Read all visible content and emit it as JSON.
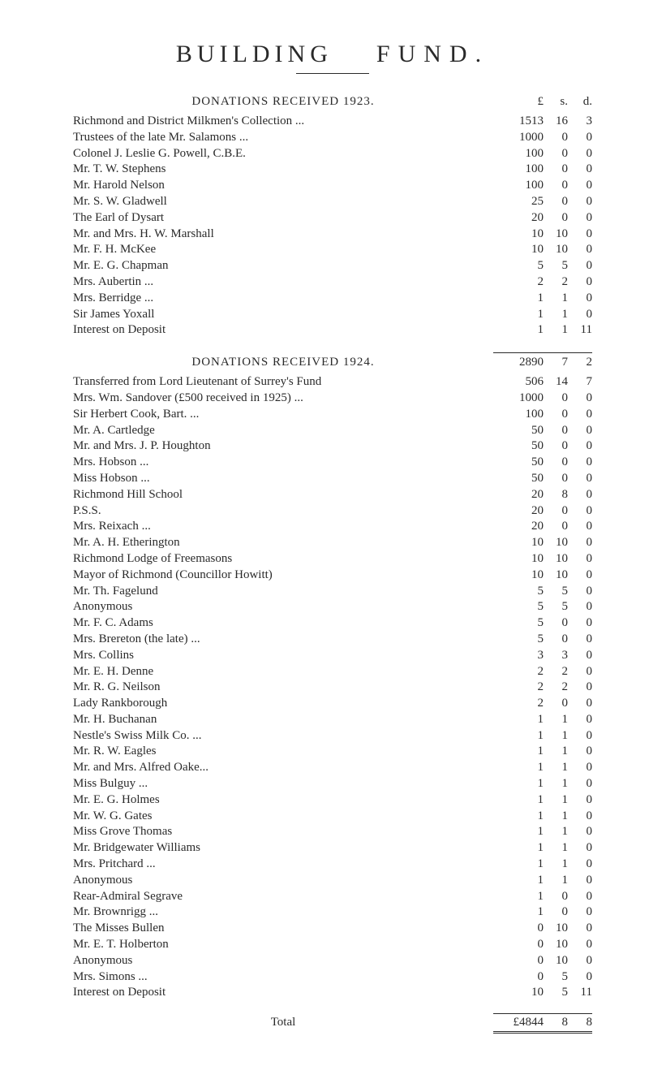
{
  "title_parts": [
    "BUILDING",
    "FUND."
  ],
  "section1": {
    "heading": "DONATIONS  RECEIVED  1923.",
    "col_heads": {
      "l": "£",
      "s": "s.",
      "d": "d."
    },
    "entries": [
      {
        "label": "Richmond and District Milkmen's Collection ...",
        "l": "1513",
        "s": "16",
        "d": "3"
      },
      {
        "label": "Trustees of the late Mr. Salamons  ...",
        "l": "1000",
        "s": "0",
        "d": "0"
      },
      {
        "label": "Colonel J. Leslie G. Powell, C.B.E.",
        "l": "100",
        "s": "0",
        "d": "0"
      },
      {
        "label": "Mr. T. W. Stephens",
        "l": "100",
        "s": "0",
        "d": "0"
      },
      {
        "label": "Mr. Harold Nelson",
        "l": "100",
        "s": "0",
        "d": "0"
      },
      {
        "label": "Mr. S. W. Gladwell",
        "l": "25",
        "s": "0",
        "d": "0"
      },
      {
        "label": "The Earl of Dysart",
        "l": "20",
        "s": "0",
        "d": "0"
      },
      {
        "label": "Mr. and Mrs. H. W. Marshall",
        "l": "10",
        "s": "10",
        "d": "0"
      },
      {
        "label": "Mr. F. H. McKee",
        "l": "10",
        "s": "10",
        "d": "0"
      },
      {
        "label": "Mr. E. G. Chapman",
        "l": "5",
        "s": "5",
        "d": "0"
      },
      {
        "label": "Mrs. Aubertin  ...",
        "l": "2",
        "s": "2",
        "d": "0"
      },
      {
        "label": "Mrs. Berridge  ...",
        "l": "1",
        "s": "1",
        "d": "0"
      },
      {
        "label": "Sir James Yoxall",
        "l": "1",
        "s": "1",
        "d": "0"
      },
      {
        "label": "Interest on Deposit",
        "l": "1",
        "s": "1",
        "d": "11"
      }
    ]
  },
  "section2": {
    "heading": "DONATIONS  RECEIVED  1924.",
    "subtotal": {
      "l": "2890",
      "s": "7",
      "d": "2"
    },
    "entries": [
      {
        "label": "Transferred from Lord Lieutenant of Surrey's Fund",
        "l": "506",
        "s": "14",
        "d": "7"
      },
      {
        "label": "Mrs. Wm. Sandover (£500 received in 1925)  ...",
        "l": "1000",
        "s": "0",
        "d": "0"
      },
      {
        "label": "Sir Herbert Cook, Bart.  ...",
        "l": "100",
        "s": "0",
        "d": "0"
      },
      {
        "label": "Mr. A. Cartledge",
        "l": "50",
        "s": "0",
        "d": "0"
      },
      {
        "label": "Mr. and Mrs. J. P. Houghton",
        "l": "50",
        "s": "0",
        "d": "0"
      },
      {
        "label": "Mrs. Hobson  ...",
        "l": "50",
        "s": "0",
        "d": "0"
      },
      {
        "label": "Miss Hobson  ...",
        "l": "50",
        "s": "0",
        "d": "0"
      },
      {
        "label": "Richmond Hill School",
        "l": "20",
        "s": "8",
        "d": "0"
      },
      {
        "label": "P.S.S.",
        "l": "20",
        "s": "0",
        "d": "0"
      },
      {
        "label": "Mrs. Reixach  ...",
        "l": "20",
        "s": "0",
        "d": "0"
      },
      {
        "label": "Mr. A. H. Etherington",
        "l": "10",
        "s": "10",
        "d": "0"
      },
      {
        "label": "Richmond Lodge of Freemasons",
        "l": "10",
        "s": "10",
        "d": "0"
      },
      {
        "label": "Mayor of Richmond (Councillor Howitt)",
        "l": "10",
        "s": "10",
        "d": "0"
      },
      {
        "label": "Mr. Th. Fagelund",
        "l": "5",
        "s": "5",
        "d": "0"
      },
      {
        "label": "Anonymous",
        "l": "5",
        "s": "5",
        "d": "0"
      },
      {
        "label": "Mr. F. C. Adams",
        "l": "5",
        "s": "0",
        "d": "0"
      },
      {
        "label": "Mrs. Brereton (the late)  ...",
        "l": "5",
        "s": "0",
        "d": "0"
      },
      {
        "label": "Mrs. Collins",
        "l": "3",
        "s": "3",
        "d": "0"
      },
      {
        "label": "Mr. E. H. Denne",
        "l": "2",
        "s": "2",
        "d": "0"
      },
      {
        "label": "Mr. R. G. Neilson",
        "l": "2",
        "s": "2",
        "d": "0"
      },
      {
        "label": "Lady Rankborough",
        "l": "2",
        "s": "0",
        "d": "0"
      },
      {
        "label": "Mr. H. Buchanan",
        "l": "1",
        "s": "1",
        "d": "0"
      },
      {
        "label": "Nestle's Swiss Milk Co.  ...",
        "l": "1",
        "s": "1",
        "d": "0"
      },
      {
        "label": "Mr. R. W. Eagles",
        "l": "1",
        "s": "1",
        "d": "0"
      },
      {
        "label": "Mr. and Mrs. Alfred Oake...",
        "l": "1",
        "s": "1",
        "d": "0"
      },
      {
        "label": "Miss Bulguy  ...",
        "l": "1",
        "s": "1",
        "d": "0"
      },
      {
        "label": "Mr. E. G. Holmes",
        "l": "1",
        "s": "1",
        "d": "0"
      },
      {
        "label": "Mr. W. G. Gates",
        "l": "1",
        "s": "1",
        "d": "0"
      },
      {
        "label": "Miss Grove Thomas",
        "l": "1",
        "s": "1",
        "d": "0"
      },
      {
        "label": "Mr. Bridgewater Williams",
        "l": "1",
        "s": "1",
        "d": "0"
      },
      {
        "label": "Mrs. Pritchard ...",
        "l": "1",
        "s": "1",
        "d": "0"
      },
      {
        "label": "Anonymous",
        "l": "1",
        "s": "1",
        "d": "0"
      },
      {
        "label": "Rear-Admiral Segrave",
        "l": "1",
        "s": "0",
        "d": "0"
      },
      {
        "label": "Mr. Brownrigg ...",
        "l": "1",
        "s": "0",
        "d": "0"
      },
      {
        "label": "The Misses Bullen",
        "l": "0",
        "s": "10",
        "d": "0"
      },
      {
        "label": "Mr. E. T. Holberton",
        "l": "0",
        "s": "10",
        "d": "0"
      },
      {
        "label": "Anonymous",
        "l": "0",
        "s": "10",
        "d": "0"
      },
      {
        "label": "Mrs. Simons  ...",
        "l": "0",
        "s": "5",
        "d": "0"
      },
      {
        "label": "Interest on Deposit",
        "l": "10",
        "s": "5",
        "d": "11"
      }
    ]
  },
  "total": {
    "label": "Total",
    "l": "£4844",
    "s": "8",
    "d": "8"
  }
}
